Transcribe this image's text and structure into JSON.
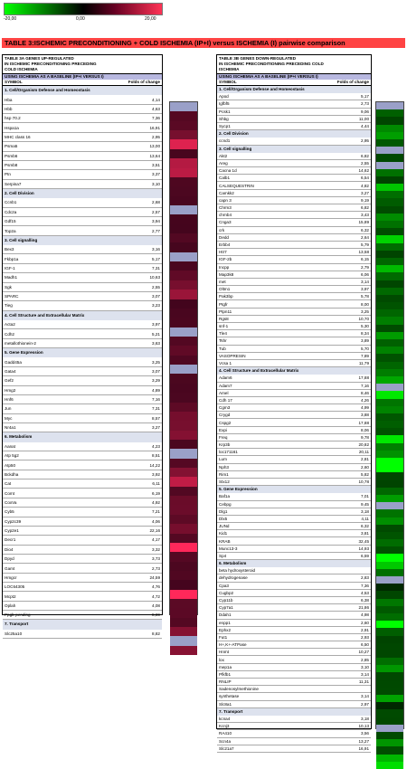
{
  "scale": {
    "left": "-20,00",
    "mid": "0,00",
    "right": "20,00"
  },
  "title": "TABLE 3:ISCHEMIC PRECONDITIONING + COLD ISCHEMIA (IP+I) versus ISCHEMIA (I) pairwise comparison",
  "left": {
    "header": [
      "TABLE 3A GENES UP-REGULATED",
      "IN ISCHEMIC PRECONDITIONING PRECEDING",
      "COLD ISCHEMIA"
    ],
    "baseline": "USING ISCHEMIA AS A BASELINE (IP+I VERSUS I)",
    "col_symbol": "SYMBOL",
    "col_fold": "Folds of change",
    "sections": [
      {
        "title": "1. Cell/Organism Defense and Homeostasis",
        "rows": [
          [
            "Hba",
            "4,14"
          ],
          [
            "Hbb",
            "4,63"
          ],
          [
            "hsp 70.2",
            "7,36"
          ],
          [
            "Hspa1a",
            "16,91"
          ],
          [
            "MHC class 16",
            "2,95"
          ],
          [
            "Psma5",
            "13,00"
          ],
          [
            "Psmb6",
            "13,64"
          ],
          [
            "Psmb8",
            "3,51"
          ],
          [
            "Ptn",
            "3,37"
          ],
          [
            "Serpina7",
            "3,10"
          ]
        ]
      },
      {
        "title": "2. Cell Division",
        "rows": [
          [
            "Ccnb1",
            "2,68"
          ],
          [
            "Cdc2a",
            "2,57"
          ],
          [
            "Gdf15",
            "3,94"
          ],
          [
            "Top2a",
            "2,77"
          ]
        ]
      },
      {
        "title": "3. Cell signalling",
        "rows": [
          [
            "Bex3",
            "3,16"
          ],
          [
            "Fkbp1a",
            "5,17"
          ],
          [
            "IGF-1",
            "7,31"
          ],
          [
            "Madh1",
            "10,63"
          ],
          [
            "Sgk",
            "2,55"
          ],
          [
            "SPARC",
            "3,07"
          ],
          [
            "Tieg",
            "3,23"
          ]
        ]
      },
      {
        "title": "4. Cell Structure and Extracellular Matrix",
        "rows": [
          [
            "Acta2",
            "3,97"
          ],
          [
            "Cdh2",
            "5,21"
          ],
          [
            "metallothionein-2",
            "3,63"
          ]
        ]
      },
      {
        "title": "5. Gene Expression",
        "rows": [
          [
            "Gadd45a",
            "3,25"
          ],
          [
            "Gata4",
            "3,07"
          ],
          [
            "Gef2",
            "3,29"
          ],
          [
            "Hmg2",
            "4,89"
          ],
          [
            "Hnf6",
            "7,16"
          ],
          [
            "Jun",
            "7,31"
          ],
          [
            "Myc",
            "8,57"
          ],
          [
            "Nr4a1",
            "3,27"
          ]
        ]
      },
      {
        "title": "6. Metabolism",
        "rows": [
          [
            "Aanat",
            "4,23"
          ],
          [
            "Atp 5g2",
            "8,51"
          ],
          [
            "Atp50",
            "14,22"
          ],
          [
            "Bckdha",
            "3,92"
          ],
          [
            "Cat",
            "6,11"
          ],
          [
            "Comt",
            "6,19"
          ],
          [
            "CoxVa",
            "4,92"
          ],
          [
            "Cyb5",
            "7,21"
          ],
          [
            "Cyp2c39",
            "4,06"
          ],
          [
            "Cyp2e1",
            "22,16"
          ],
          [
            "Decr1",
            "4,17"
          ],
          [
            "Dio4",
            "3,32"
          ],
          [
            "Dpyd",
            "3,73"
          ],
          [
            "Gamt",
            "2,73"
          ],
          [
            "Hmgcr",
            "24,59"
          ],
          [
            "LOC64305",
            "4,76"
          ],
          [
            "Mcpt2",
            "4,72"
          ],
          [
            "Oplah",
            "4,08"
          ],
          [
            "Ppgb-pending",
            "8,69"
          ]
        ]
      },
      {
        "title": "7. Transport",
        "rows": [
          [
            "Slc25a10",
            "8,82"
          ]
        ]
      }
    ]
  },
  "right": {
    "header": [
      "TABLE 3B GENES DOWN-REGULATED",
      "IN ISCHEMIC PRECONDITIONING PRECEDING COLD",
      "ISCHEMIA"
    ],
    "baseline": "USING ISCHEMIA AS A BASELINE (IP+I VERSUS I)",
    "col_symbol": "SYMBOL",
    "col_fold": "Folds of change",
    "sections": [
      {
        "title": "1. Cell/Organism Defense and Homeostasis",
        "rows": [
          [
            "Apod",
            "5,17"
          ],
          [
            "Igfbf5",
            "2,73"
          ],
          [
            "Pcsk1",
            "9,06"
          ],
          [
            "Shbg",
            "11,00"
          ],
          [
            "Sycp1",
            "4,44"
          ]
        ]
      },
      {
        "title": "2. Cell Division",
        "rows": [
          [
            "ccnd1",
            "2,95"
          ]
        ]
      },
      {
        "title": "3. Cell signalling",
        "rows": [
          [
            "Akt2",
            "6,82"
          ],
          [
            "Areg",
            "2,55"
          ],
          [
            "Cacna 1d",
            "14,62"
          ],
          [
            "Calb1",
            "6,54"
          ],
          [
            "CALSEQUESTRIN",
            "4,82"
          ],
          [
            "Camkk2",
            "3,27"
          ],
          [
            "capn 3",
            "9,19"
          ],
          [
            "Chrm3",
            "6,82"
          ],
          [
            "chrnb4",
            "3,43"
          ],
          [
            "Cnga3",
            "15,89"
          ],
          [
            "crk",
            "6,32"
          ],
          [
            "Dedd",
            "2,64"
          ],
          [
            "Erbb4",
            "5,79"
          ],
          [
            "Htr7",
            "13,58"
          ],
          [
            "IGF-2b",
            "6,15"
          ],
          [
            "Incpp",
            "2,79"
          ],
          [
            "Map3k8",
            "6,06"
          ],
          [
            "met",
            "3,14"
          ],
          [
            "Oltm1",
            "3,97"
          ],
          [
            "Pak3bp",
            "5,78"
          ],
          [
            "Ptgfr",
            "8,00"
          ],
          [
            "Ptpn11",
            "3,25"
          ],
          [
            "Rgs8",
            "10,70"
          ],
          [
            "snf-1",
            "5,30"
          ],
          [
            "Tle4",
            "8,34"
          ],
          [
            "Tshr",
            "3,89"
          ],
          [
            "Tub",
            "5,70"
          ],
          [
            "VASOPRESIN",
            "7,89"
          ],
          [
            "Vcsa 1",
            "11,79"
          ]
        ]
      },
      {
        "title": "4. Cell Structure and Extracellular Matrix",
        "rows": [
          [
            "Adam6",
            "17,88"
          ],
          [
            "Adam7",
            "7,16"
          ],
          [
            "Amel",
            "8,46"
          ],
          [
            "Cdh 17",
            "4,26"
          ],
          [
            "Cgm3",
            "4,99"
          ],
          [
            "Crygd",
            "3,88"
          ],
          [
            "Cspg2",
            "17,88"
          ],
          [
            "Expi",
            "8,06"
          ],
          [
            "Freq",
            "9,78"
          ],
          [
            "Krp3b",
            "20,82"
          ],
          [
            "loc171161",
            "20,11"
          ],
          [
            "Lum",
            "2,81"
          ],
          [
            "Nph3",
            "2,60"
          ],
          [
            "Rim1",
            "5,82"
          ],
          [
            "Stx12",
            "10,78"
          ]
        ]
      },
      {
        "title": "5. Gene Expression",
        "rows": [
          [
            "Baf1a",
            "7,01"
          ],
          [
            "Cebpg",
            "9,45"
          ],
          [
            "Dlg1",
            "3,18"
          ],
          [
            "Dlx5",
            "4,11"
          ],
          [
            "JUNd",
            "6,32"
          ],
          [
            "Kid1",
            "3,81"
          ],
          [
            "KRAB",
            "32,45"
          ],
          [
            "Munc13-3",
            "14,93"
          ],
          [
            "Sp4",
            "6,59"
          ]
        ]
      },
      {
        "title": "6. Metabolism",
        "rows": [
          [
            "beta hydroxysteroid",
            "",
            ""
          ],
          [
            "dehydrogenase",
            "2,83"
          ],
          [
            "Cpa3",
            "7,36"
          ],
          [
            "Cugbp2",
            "4,53"
          ],
          [
            "Cyp11b",
            "6,38"
          ],
          [
            "Cyp7a1",
            "21,86"
          ],
          [
            "Ddah1",
            "4,98"
          ],
          [
            "enpp1",
            "2,60"
          ],
          [
            "Ephx2",
            "2,91"
          ],
          [
            "Fut1",
            "2,93"
          ],
          [
            "H+,K+-ATPase",
            "6,50"
          ],
          [
            "Hnmt",
            "10,27"
          ],
          [
            "lox",
            "2,85"
          ],
          [
            "mep1a",
            "3,10"
          ],
          [
            "Pfkfb1",
            "3,14"
          ],
          [
            "RNLIP",
            "11,31"
          ],
          [
            "Sadenosylmethionine",
            ""
          ],
          [
            "synthetase",
            "3,14"
          ],
          [
            "Slc8a1",
            "2,97"
          ]
        ]
      },
      {
        "title": "7. Transport",
        "rows": [
          [
            "kcna4",
            "3,18"
          ],
          [
            "Kcnj3",
            "10,13"
          ],
          [
            "RA410",
            "3,56"
          ],
          [
            "Scn4a",
            "13,27"
          ],
          [
            "Slc21a7",
            "16,91"
          ]
        ]
      }
    ]
  }
}
